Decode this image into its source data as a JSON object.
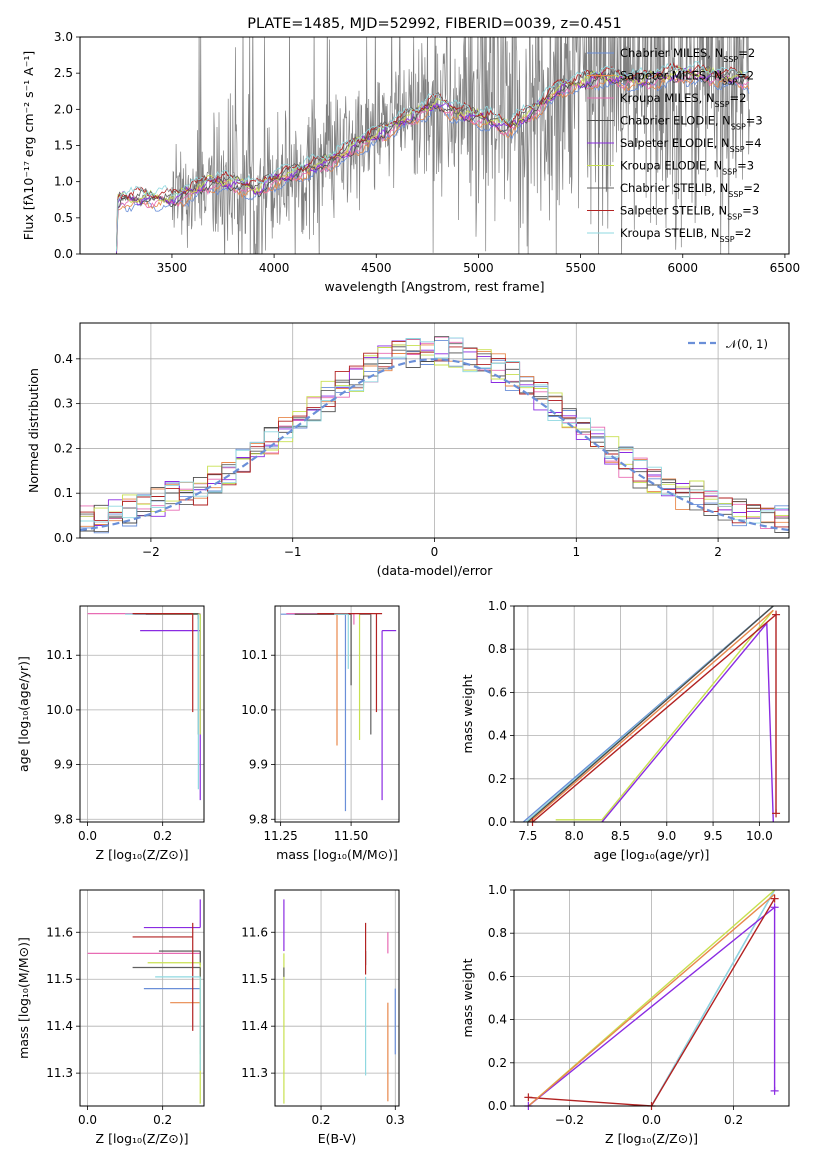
{
  "colors": [
    "#6a8fd8",
    "#e8884c",
    "#e86cb4",
    "#4c4c4c",
    "#8a2be2",
    "#c8e050",
    "#606060",
    "#b22222",
    "#8fd8e0"
  ],
  "spectrum_color": "#808080",
  "chart_data": [
    {
      "id": "spectrum",
      "type": "line",
      "title": "PLATE=1485, MJD=52992, FIBERID=0039, z=0.451",
      "xlabel": "wavelength [Angstrom, rest frame]",
      "ylabel": "Flux [fλ10⁻¹⁷ erg cm⁻² s⁻¹ A⁻¹]",
      "xlim": [
        3050,
        6520
      ],
      "ylim": [
        0,
        3.0
      ],
      "xticks": [
        3500,
        4000,
        4500,
        5000,
        5500,
        6000,
        6500
      ],
      "yticks": [
        0.0,
        0.5,
        1.0,
        1.5,
        2.0,
        2.5,
        3.0
      ],
      "grid": false,
      "legend_position": "top-right",
      "legend": [
        {
          "label": "Chabrier MILES, N",
          "sub": "SSP",
          "suffix": "=2"
        },
        {
          "label": "Salpeter MILES, N",
          "sub": "SSP",
          "suffix": "=2"
        },
        {
          "label": "Kroupa MILES, N",
          "sub": "SSP",
          "suffix": "=2"
        },
        {
          "label": "Chabrier ELODIE, N",
          "sub": "SSP",
          "suffix": "=3"
        },
        {
          "label": "Salpeter ELODIE, N",
          "sub": "SSP",
          "suffix": "=4"
        },
        {
          "label": "Kroupa ELODIE, N",
          "sub": "SSP",
          "suffix": "=3"
        },
        {
          "label": "Chabrier STELIB, N",
          "sub": "SSP",
          "suffix": "=2"
        },
        {
          "label": "Salpeter STELIB, N",
          "sub": "SSP",
          "suffix": "=3"
        },
        {
          "label": "Kroupa STELIB, N",
          "sub": "SSP",
          "suffix": "=2"
        }
      ],
      "model_knots": [
        [
          3230,
          0
        ],
        [
          3231,
          0.72
        ],
        [
          3260,
          0.78
        ],
        [
          3300,
          0.76
        ],
        [
          3400,
          0.78
        ],
        [
          3500,
          0.75
        ],
        [
          3600,
          0.88
        ],
        [
          3700,
          1.0
        ],
        [
          3800,
          0.98
        ],
        [
          3930,
          0.88
        ],
        [
          3970,
          1.0
        ],
        [
          4100,
          1.12
        ],
        [
          4300,
          1.32
        ],
        [
          4400,
          1.5
        ],
        [
          4550,
          1.72
        ],
        [
          4700,
          1.95
        ],
        [
          4800,
          2.1
        ],
        [
          4900,
          1.95
        ],
        [
          5000,
          1.9
        ],
        [
          5150,
          1.75
        ],
        [
          5300,
          2.05
        ],
        [
          5400,
          2.3
        ],
        [
          5600,
          2.45
        ],
        [
          5800,
          2.4
        ],
        [
          6000,
          2.5
        ],
        [
          6200,
          2.45
        ],
        [
          6330,
          2.4
        ]
      ]
    },
    {
      "id": "residuals",
      "type": "line",
      "xlabel": "(data-model)/error",
      "ylabel": "Normed distribution",
      "xlim": [
        -2.5,
        2.5
      ],
      "ylim": [
        0,
        0.48
      ],
      "xticks": [
        -2,
        -1,
        0,
        1,
        2
      ],
      "yticks": [
        0.0,
        0.1,
        0.2,
        0.3,
        0.4
      ],
      "grid": true,
      "legend_position": "top-right",
      "legend_label": "𝒩(0, 1)",
      "gaussian": {
        "mean": 0,
        "sigma": 1,
        "color": "#6a8fd8"
      }
    },
    {
      "id": "age_vs_Z",
      "type": "scatter",
      "xlabel": "Z [log₁₀(Z/Z⊙)]",
      "ylabel": "age  [log₁₀(age/yr)]",
      "xlim": [
        -0.02,
        0.31
      ],
      "ylim": [
        9.795,
        10.19
      ],
      "xticks": [
        0.0,
        0.2
      ],
      "yticks": [
        9.8,
        9.9,
        10.0,
        10.1
      ],
      "grid": true,
      "points": [
        {
          "x": 0.3,
          "y": 10.175,
          "xerr": [
            0.18,
            0.0
          ],
          "yerr": [
            0.04,
            0.0
          ],
          "c": 0
        },
        {
          "x": 0.3,
          "y": 10.176,
          "xerr": [
            0.3,
            0.0
          ],
          "yerr": [
            0.01,
            0.0
          ],
          "c": 2
        },
        {
          "x": 0.3,
          "y": 10.175,
          "xerr": [
            0.2,
            0.0
          ],
          "yerr": [
            0.22,
            0.0
          ],
          "c": 8
        },
        {
          "x": 0.295,
          "y": 10.176,
          "xerr": [
            0.17,
            0.0
          ],
          "yerr": [
            0.01,
            0.0
          ],
          "c": 3
        },
        {
          "x": 0.3,
          "y": 10.145,
          "xerr": [
            0.16,
            0.0
          ],
          "yerr": [
            0.31,
            0.0
          ],
          "c": 4
        },
        {
          "x": 0.3,
          "y": 10.175,
          "xerr": [
            0.12,
            0.0
          ],
          "yerr": [
            0.22,
            0.0
          ],
          "c": 5
        },
        {
          "x": 0.295,
          "y": 10.175,
          "xerr": [
            0.14,
            0.0
          ],
          "yerr": [
            0.22,
            0.0
          ],
          "c": 6
        },
        {
          "x": 0.28,
          "y": 10.176,
          "xerr": [
            0.16,
            0.0
          ],
          "yerr": [
            0.18,
            0.0
          ],
          "c": 7
        },
        {
          "x": 0.295,
          "y": 10.175,
          "xerr": [
            0.0,
            0.0
          ],
          "yerr": [
            0.32,
            0.0
          ],
          "c": 8
        }
      ]
    },
    {
      "id": "age_vs_mass",
      "type": "scatter",
      "xlabel": "mass [log₁₀(M/M⊙)]",
      "ylabel": "",
      "xlim": [
        11.23,
        11.67
      ],
      "ylim": [
        9.795,
        10.19
      ],
      "xticks": [
        11.25,
        11.5
      ],
      "yticks": [
        9.8,
        9.9,
        10.0,
        10.1
      ],
      "grid": true,
      "points": [
        {
          "x": 11.48,
          "y": 10.175,
          "xerr": [
            0.23,
            0.0
          ],
          "yerr": [
            0.36,
            0.0
          ],
          "c": 0
        },
        {
          "x": 11.45,
          "y": 10.175,
          "xerr": [
            0.15,
            0.0
          ],
          "yerr": [
            0.24,
            0.0
          ],
          "c": 1
        },
        {
          "x": 11.51,
          "y": 10.176,
          "xerr": [
            0.24,
            0.0
          ],
          "yerr": [
            0.02,
            0.0
          ],
          "c": 2
        },
        {
          "x": 11.5,
          "y": 10.175,
          "xerr": [
            0.2,
            0.0
          ],
          "yerr": [
            0.13,
            0.0
          ],
          "c": 3
        },
        {
          "x": 11.61,
          "y": 10.145,
          "xerr": [
            0.0,
            0.05
          ],
          "yerr": [
            0.31,
            0.0
          ],
          "c": 4
        },
        {
          "x": 11.53,
          "y": 10.175,
          "xerr": [
            0.0,
            0.0
          ],
          "yerr": [
            0.23,
            0.0
          ],
          "c": 5
        },
        {
          "x": 11.57,
          "y": 10.175,
          "xerr": [
            0.04,
            0.0
          ],
          "yerr": [
            0.22,
            0.0
          ],
          "c": 6
        },
        {
          "x": 11.59,
          "y": 10.176,
          "xerr": [
            0.21,
            0.02
          ],
          "yerr": [
            0.18,
            0.0
          ],
          "c": 7
        },
        {
          "x": 11.49,
          "y": 10.175,
          "xerr": [
            0.05,
            0.0
          ],
          "yerr": [
            0.1,
            0.0
          ],
          "c": 8
        }
      ]
    },
    {
      "id": "weight_vs_age",
      "type": "line",
      "xlabel": "age  [log₁₀(age/yr)]",
      "ylabel": "mass weight",
      "xlim": [
        7.35,
        10.32
      ],
      "ylim": [
        0,
        1.0
      ],
      "xticks": [
        7.5,
        8.0,
        8.5,
        9.0,
        9.5,
        10.0
      ],
      "yticks": [
        0.0,
        0.2,
        0.4,
        0.6,
        0.8,
        1.0
      ],
      "grid": true,
      "series": [
        {
          "c": 0,
          "pts": [
            [
              7.45,
              0.0
            ],
            [
              10.15,
              1.0
            ]
          ]
        },
        {
          "c": 8,
          "pts": [
            [
              7.48,
              0.0
            ],
            [
              10.15,
              1.0
            ]
          ]
        },
        {
          "c": 3,
          "pts": [
            [
              7.5,
              0.0
            ],
            [
              10.15,
              1.0
            ]
          ]
        },
        {
          "c": 5,
          "pts": [
            [
              7.8,
              0.01
            ],
            [
              8.3,
              0.01
            ],
            [
              10.15,
              0.98
            ]
          ]
        },
        {
          "c": 4,
          "pts": [
            [
              8.3,
              0.0
            ],
            [
              10.08,
              0.92
            ],
            [
              10.15,
              0.0
            ]
          ]
        },
        {
          "c": 7,
          "pts": [
            [
              7.55,
              0.0
            ],
            [
              10.18,
              0.96
            ],
            [
              10.18,
              0.04
            ]
          ],
          "marker": true
        },
        {
          "c": 1,
          "pts": [
            [
              7.52,
              0.0
            ],
            [
              10.15,
              0.98
            ]
          ]
        }
      ]
    },
    {
      "id": "mass_vs_Z",
      "type": "scatter",
      "xlabel": "Z [log₁₀(Z/Z⊙)]",
      "ylabel": "mass [log₁₀(M/M⊙)]",
      "xlim": [
        -0.02,
        0.31
      ],
      "ylim": [
        11.23,
        11.69
      ],
      "xticks": [
        0.0,
        0.2
      ],
      "yticks": [
        11.3,
        11.4,
        11.5,
        11.6
      ],
      "grid": true,
      "points": [
        {
          "x": 0.3,
          "y": 11.48,
          "xerr": [
            0.15,
            0.0
          ],
          "yerr": [
            0.14,
            0.0
          ],
          "c": 0
        },
        {
          "x": 0.3,
          "y": 11.45,
          "xerr": [
            0.08,
            0.0
          ],
          "yerr": [
            0.05,
            0.0
          ],
          "c": 1
        },
        {
          "x": 0.3,
          "y": 11.555,
          "xerr": [
            0.3,
            0.0
          ],
          "yerr": [
            0.0,
            0.0
          ],
          "c": 2
        },
        {
          "x": 0.3,
          "y": 11.56,
          "xerr": [
            0.11,
            0.0
          ],
          "yerr": [
            0.03,
            0.0
          ],
          "c": 3
        },
        {
          "x": 0.3,
          "y": 11.61,
          "xerr": [
            0.15,
            0.0
          ],
          "yerr": [
            0.0,
            0.06
          ],
          "c": 4
        },
        {
          "x": 0.3,
          "y": 11.535,
          "xerr": [
            0.14,
            0.0
          ],
          "yerr": [
            0.3,
            0.0
          ],
          "c": 5
        },
        {
          "x": 0.3,
          "y": 11.525,
          "xerr": [
            0.18,
            0.0
          ],
          "yerr": [
            0.02,
            0.0
          ],
          "c": 6
        },
        {
          "x": 0.28,
          "y": 11.59,
          "xerr": [
            0.16,
            0.0
          ],
          "yerr": [
            0.2,
            0.03
          ],
          "c": 7
        },
        {
          "x": 0.3,
          "y": 11.505,
          "xerr": [
            0.12,
            0.0
          ],
          "yerr": [
            0.2,
            0.0
          ],
          "c": 8
        }
      ]
    },
    {
      "id": "mass_vs_ebv",
      "type": "scatter",
      "xlabel": "E(B-V)",
      "ylabel": "",
      "xlim": [
        0.138,
        0.305
      ],
      "ylim": [
        11.23,
        11.69
      ],
      "xticks": [
        0.2,
        0.3
      ],
      "yticks": [
        11.3,
        11.4,
        11.5,
        11.6
      ],
      "grid": true,
      "points": [
        {
          "x": 0.3,
          "y": 11.48,
          "xerr": [
            0,
            0
          ],
          "yerr": [
            0.14,
            0.0
          ],
          "c": 0
        },
        {
          "x": 0.29,
          "y": 11.45,
          "xerr": [
            0,
            0
          ],
          "yerr": [
            0.21,
            0.0
          ],
          "c": 1
        },
        {
          "x": 0.29,
          "y": 11.555,
          "xerr": [
            0,
            0
          ],
          "yerr": [
            0.0,
            0.045
          ],
          "c": 2
        },
        {
          "x": 0.26,
          "y": 11.56,
          "xerr": [
            0,
            0
          ],
          "yerr": [
            0.03,
            0.0
          ],
          "c": 3
        },
        {
          "x": 0.15,
          "y": 11.61,
          "xerr": [
            0,
            0
          ],
          "yerr": [
            0.05,
            0.06
          ],
          "c": 4
        },
        {
          "x": 0.15,
          "y": 11.535,
          "xerr": [
            0,
            0
          ],
          "yerr": [
            0.3,
            0.02
          ],
          "c": 5
        },
        {
          "x": 0.15,
          "y": 11.525,
          "xerr": [
            0,
            0
          ],
          "yerr": [
            0.02,
            0.0
          ],
          "c": 6
        },
        {
          "x": 0.26,
          "y": 11.59,
          "xerr": [
            0,
            0
          ],
          "yerr": [
            0.08,
            0.03
          ],
          "c": 7
        },
        {
          "x": 0.26,
          "y": 11.505,
          "xerr": [
            0,
            0
          ],
          "yerr": [
            0.21,
            0.0
          ],
          "c": 8
        }
      ]
    },
    {
      "id": "weight_vs_Z",
      "type": "line",
      "xlabel": "Z [log₁₀(Z/Z⊙)]",
      "ylabel": "mass weight",
      "xlim": [
        -0.335,
        0.335
      ],
      "ylim": [
        0,
        1.0
      ],
      "xticks": [
        -0.2,
        0.0,
        0.2
      ],
      "yticks": [
        0.0,
        0.2,
        0.4,
        0.6,
        0.8,
        1.0
      ],
      "grid": true,
      "series": [
        {
          "c": 0,
          "pts": [
            [
              0.0,
              0.0
            ],
            [
              0.3,
              1.0
            ]
          ]
        },
        {
          "c": 8,
          "pts": [
            [
              0.0,
              0.0
            ],
            [
              0.3,
              1.0
            ]
          ]
        },
        {
          "c": 5,
          "pts": [
            [
              -0.3,
              0.0
            ],
            [
              0.3,
              1.0
            ]
          ]
        },
        {
          "c": 4,
          "pts": [
            [
              -0.3,
              0.0
            ],
            [
              0.3,
              0.92
            ],
            [
              0.3,
              0.07
            ]
          ],
          "marker": true
        },
        {
          "c": 7,
          "pts": [
            [
              -0.3,
              0.04
            ],
            [
              0.0,
              0.0
            ],
            [
              0.3,
              0.96
            ]
          ],
          "marker": true
        },
        {
          "c": 1,
          "pts": [
            [
              -0.3,
              0.0
            ],
            [
              0.3,
              0.98
            ]
          ]
        }
      ]
    }
  ]
}
